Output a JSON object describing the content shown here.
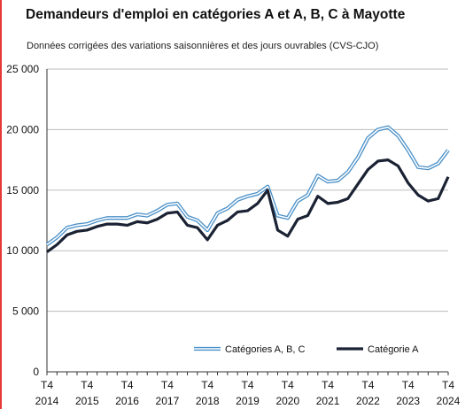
{
  "title": "Demandeurs d'emploi en catégories A et A, B, C à Mayotte",
  "subtitle": "Données corrigées des variations saisonnières et des jours ouvrables (CVS-CJO)",
  "chart_data": {
    "type": "line",
    "title": "Demandeurs d'emploi en catégories A et A, B, C à Mayotte",
    "subtitle": "Données corrigées des variations saisonnières et des jours ouvrables (CVS-CJO)",
    "xlabel": "",
    "ylabel": "",
    "ylim": [
      0,
      25000
    ],
    "yticks": [
      0,
      5000,
      10000,
      15000,
      20000,
      25000
    ],
    "ytick_labels": [
      "0",
      "5 000",
      "10 000",
      "15 000",
      "20 000",
      "25 000"
    ],
    "xtick_labels": [
      {
        "quarter": "T4",
        "year": "2014"
      },
      {
        "quarter": "T4",
        "year": "2015"
      },
      {
        "quarter": "T4",
        "year": "2016"
      },
      {
        "quarter": "T4",
        "year": "2017"
      },
      {
        "quarter": "T4",
        "year": "2018"
      },
      {
        "quarter": "T4",
        "year": "2019"
      },
      {
        "quarter": "T4",
        "year": "2020"
      },
      {
        "quarter": "T4",
        "year": "2021"
      },
      {
        "quarter": "T4",
        "year": "2022"
      },
      {
        "quarter": "T4",
        "year": "2023"
      },
      {
        "quarter": "T4",
        "year": "2024"
      }
    ],
    "x_range": [
      "2014 T4",
      "2024 T4"
    ],
    "grid": "horizontal",
    "legend_position": "bottom",
    "series": [
      {
        "name": "Catégories A, B, C",
        "color": "#4a90c8",
        "style": "double",
        "values": [
          10500,
          11100,
          11900,
          12100,
          12200,
          12500,
          12700,
          12700,
          12700,
          13000,
          12900,
          13300,
          13800,
          13900,
          12800,
          12500,
          11700,
          13100,
          13500,
          14200,
          14500,
          14700,
          15300,
          12900,
          12700,
          14100,
          14600,
          16200,
          15700,
          15800,
          16500,
          17700,
          19300,
          20000,
          20200,
          19500,
          18300,
          16900,
          16800,
          17200,
          18300
        ]
      },
      {
        "name": "Catégorie A",
        "color": "#1a2233",
        "style": "thick",
        "values": [
          9900,
          10500,
          11300,
          11600,
          11700,
          12000,
          12200,
          12200,
          12100,
          12400,
          12300,
          12600,
          13100,
          13200,
          12100,
          11900,
          10900,
          12100,
          12500,
          13200,
          13300,
          13900,
          15000,
          11700,
          11200,
          12600,
          12900,
          14500,
          13900,
          14000,
          14300,
          15500,
          16700,
          17400,
          17500,
          17000,
          15600,
          14600,
          14100,
          14300,
          16100
        ]
      }
    ]
  }
}
